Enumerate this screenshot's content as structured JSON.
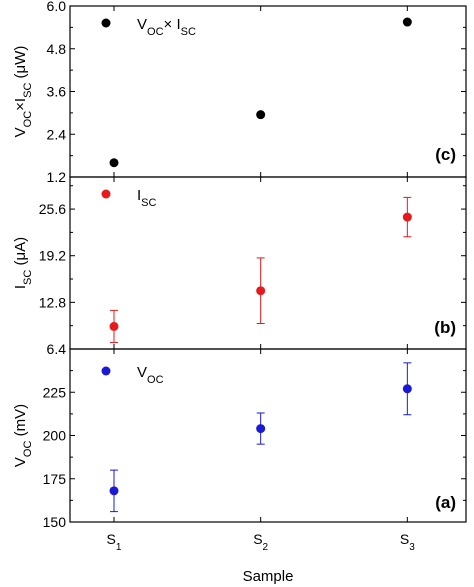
{
  "chart_data": {
    "type": "scatter",
    "shared_x": {
      "label": "Sample",
      "categories": [
        {
          "base": "S",
          "sub": "1"
        },
        {
          "base": "S",
          "sub": "2"
        },
        {
          "base": "S",
          "sub": "3"
        }
      ],
      "x": [
        1,
        2,
        3
      ],
      "xlim": [
        0.7,
        3.4
      ]
    },
    "panels": [
      {
        "tag": "(c)",
        "ylabel": {
          "prefix": "V",
          "sub1": "OC",
          "mid": "×I",
          "sub2": "SC",
          "suffix": " (μW)"
        },
        "legend": {
          "prefix": "V",
          "sub1": "OC",
          "mid": "× I",
          "sub2": "SC"
        },
        "color": "#000000",
        "ylim": [
          1.2,
          6.0
        ],
        "yticks": [
          1.2,
          2.4,
          3.6,
          4.8,
          6.0
        ],
        "ytick_labels": [
          "1.2",
          "2.4",
          "3.6",
          "4.8",
          "6.0"
        ],
        "y": [
          1.6,
          2.95,
          5.55
        ],
        "yerr": [
          null,
          null,
          null
        ]
      },
      {
        "tag": "(b)",
        "ylabel": {
          "prefix": "I",
          "sub1": "SC",
          "mid": "",
          "sub2": "",
          "suffix": " (μA)"
        },
        "legend": {
          "prefix": "I",
          "sub1": "SC",
          "mid": "",
          "sub2": ""
        },
        "color": "#e8191c",
        "ylim": [
          6.4,
          30.0
        ],
        "yticks": [
          6.4,
          12.8,
          19.2,
          25.6
        ],
        "ytick_labels": [
          "6.4",
          "12.8",
          "19.2",
          "25.6"
        ],
        "y": [
          9.5,
          14.4,
          24.5
        ],
        "yerr": [
          2.2,
          4.5,
          2.7
        ]
      },
      {
        "tag": "(a)",
        "ylabel": {
          "prefix": "V",
          "sub1": "OC",
          "mid": "",
          "sub2": "",
          "suffix": " (mV)"
        },
        "legend": {
          "prefix": "V",
          "sub1": "OC",
          "mid": "",
          "sub2": ""
        },
        "color": "#1a1ad6",
        "ylim": [
          150,
          250
        ],
        "yticks": [
          150,
          175,
          200,
          225
        ],
        "ytick_labels": [
          "150",
          "175",
          "200",
          "225"
        ],
        "y": [
          168,
          204,
          227
        ],
        "yerr": [
          12,
          9,
          15
        ]
      }
    ]
  }
}
